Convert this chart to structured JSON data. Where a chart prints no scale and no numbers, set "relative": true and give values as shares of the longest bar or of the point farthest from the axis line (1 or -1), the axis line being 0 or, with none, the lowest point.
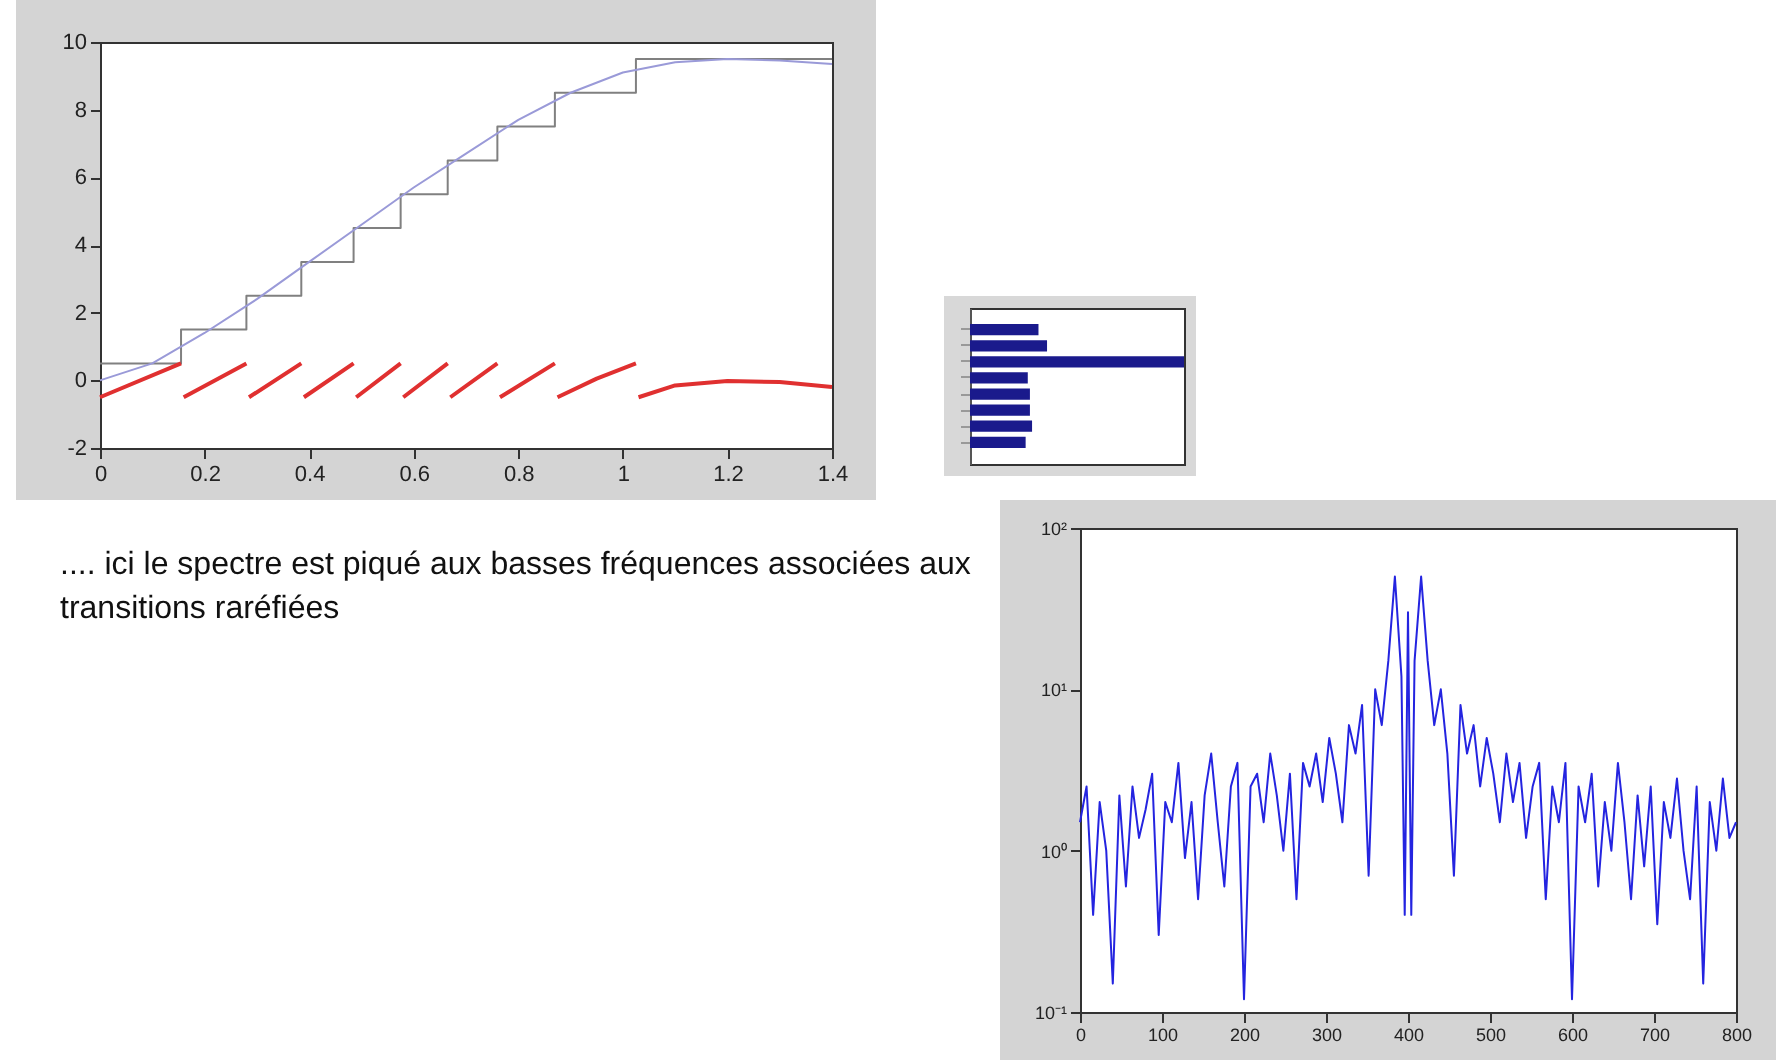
{
  "chart_data": [
    {
      "type": "line",
      "xlim": [
        0,
        1.4
      ],
      "xticks": [
        0,
        0.2,
        0.4,
        0.6,
        0.8,
        1,
        1.2,
        1.4
      ],
      "ylim": [
        -2,
        10
      ],
      "yticks": [
        -2,
        0,
        2,
        4,
        6,
        8,
        10
      ],
      "series": [
        {
          "type": "step",
          "color": "#808080",
          "x": [
            0,
            0.155,
            0.28,
            0.385,
            0.485,
            0.575,
            0.665,
            0.76,
            0.87,
            1.025,
            1.4
          ],
          "values": [
            0.5,
            1.5,
            2.5,
            3.5,
            4.5,
            5.5,
            6.5,
            7.5,
            8.5,
            9.5,
            9.5
          ]
        },
        {
          "type": "line",
          "color": "#9a9ad8",
          "x": [
            0,
            0.1,
            0.2,
            0.3,
            0.4,
            0.5,
            0.6,
            0.7,
            0.8,
            0.9,
            1.0,
            1.1,
            1.2,
            1.3,
            1.4
          ],
          "values": [
            0,
            0.5,
            1.4,
            2.4,
            3.5,
            4.6,
            5.7,
            6.7,
            7.7,
            8.5,
            9.1,
            9.4,
            9.5,
            9.45,
            9.35
          ]
        },
        {
          "type": "line",
          "color": "#e03030",
          "x": [
            0,
            0.155,
            0.158,
            0.16,
            0.28,
            0.282,
            0.285,
            0.385,
            0.387,
            0.39,
            0.485,
            0.487,
            0.49,
            0.575,
            0.577,
            0.58,
            0.665,
            0.667,
            0.67,
            0.76,
            0.762,
            0.765,
            0.87,
            0.872,
            0.875,
            0.95,
            1.025,
            1.027,
            1.03,
            1.1,
            1.2,
            1.3,
            1.4
          ],
          "values": [
            -0.5,
            0.5,
            null,
            -0.5,
            0.5,
            null,
            -0.5,
            0.5,
            null,
            -0.5,
            0.5,
            null,
            -0.5,
            0.5,
            null,
            -0.5,
            0.5,
            null,
            -0.5,
            0.5,
            null,
            -0.5,
            0.5,
            null,
            -0.5,
            0.05,
            0.5,
            null,
            -0.5,
            -0.15,
            -0.02,
            -0.05,
            -0.2
          ]
        }
      ]
    },
    {
      "type": "bar",
      "orientation": "horizontal",
      "relative": true,
      "categories": [
        null,
        null,
        null,
        null,
        null,
        null,
        null,
        null
      ],
      "series": [
        {
          "color": "#1a1a8c",
          "values": [
            0.32,
            0.36,
            1.0,
            0.27,
            0.28,
            0.28,
            0.29,
            0.26
          ]
        }
      ]
    },
    {
      "type": "line",
      "log": "y",
      "xlim": [
        0,
        800
      ],
      "xticks": [
        0,
        100,
        200,
        300,
        400,
        500,
        600,
        700,
        800
      ],
      "ylim": [
        0.1,
        100
      ],
      "yticks": [
        {
          "value": 0.1,
          "label": "10⁻¹"
        },
        {
          "value": 1,
          "label": "10⁰"
        },
        {
          "value": 10,
          "label": "10¹"
        },
        {
          "value": 100,
          "label": "10²"
        }
      ],
      "annotations": [
        ".... ici le spectre est piqué aux basses fréquences associées aux transitions raréfiées"
      ],
      "series": [
        {
          "color": "#2424e0",
          "x": [
            0,
            8,
            16,
            24,
            32,
            40,
            48,
            56,
            64,
            72,
            80,
            88,
            96,
            104,
            112,
            120,
            128,
            136,
            144,
            152,
            160,
            168,
            176,
            184,
            192,
            200,
            208,
            216,
            224,
            232,
            240,
            248,
            256,
            264,
            272,
            280,
            288,
            296,
            304,
            312,
            320,
            328,
            336,
            344,
            352,
            360,
            368,
            376,
            384,
            392,
            396,
            400,
            404,
            408,
            416,
            424,
            432,
            440,
            448,
            456,
            464,
            472,
            480,
            488,
            496,
            504,
            512,
            520,
            528,
            536,
            544,
            552,
            560,
            568,
            576,
            584,
            592,
            600,
            608,
            616,
            624,
            632,
            640,
            648,
            656,
            664,
            672,
            680,
            688,
            696,
            704,
            712,
            720,
            728,
            736,
            744,
            752,
            760,
            768,
            776,
            784,
            792,
            800
          ],
          "values": [
            1.5,
            2.5,
            0.4,
            2.0,
            1.0,
            0.15,
            2.2,
            0.6,
            2.5,
            1.2,
            1.8,
            3.0,
            0.3,
            2.0,
            1.5,
            3.5,
            0.9,
            2.0,
            0.5,
            2.2,
            4.0,
            1.5,
            0.6,
            2.5,
            3.5,
            0.12,
            2.5,
            3.0,
            1.5,
            4.0,
            2.2,
            1.0,
            3.0,
            0.5,
            3.5,
            2.5,
            4.0,
            2.0,
            5.0,
            3.0,
            1.5,
            6.0,
            4.0,
            8.0,
            0.7,
            10,
            6.0,
            15,
            50,
            12,
            0.4,
            30,
            0.4,
            15,
            50,
            15,
            6,
            10,
            4,
            0.7,
            8,
            4,
            6,
            2.5,
            5,
            3,
            1.5,
            4,
            2,
            3.5,
            1.2,
            2.5,
            3.5,
            0.5,
            2.5,
            1.5,
            3.5,
            0.12,
            2.5,
            1.5,
            3.0,
            0.6,
            2.0,
            1.0,
            3.5,
            1.5,
            0.5,
            2.2,
            0.8,
            2.5,
            0.35,
            2.0,
            1.2,
            2.8,
            1.0,
            0.5,
            2.5,
            0.15,
            2.0,
            1.0,
            2.8,
            1.2,
            1.5
          ]
        }
      ]
    }
  ]
}
